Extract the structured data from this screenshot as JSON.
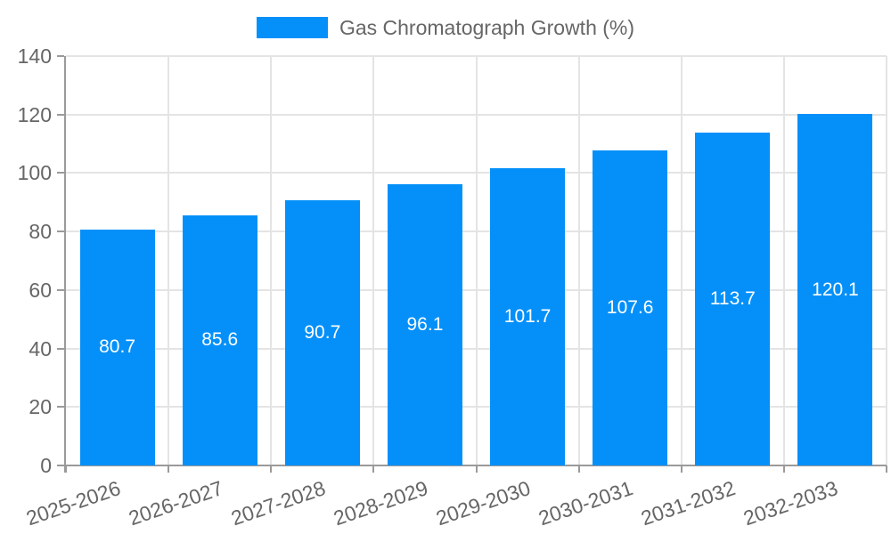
{
  "chart_data": {
    "type": "bar",
    "title": "",
    "legend_label": "Gas Chromatograph Growth (%)",
    "legend_position": "top",
    "categories": [
      "2025-2026",
      "2026-2027",
      "2027-2028",
      "2028-2029",
      "2029-2030",
      "2030-2031",
      "2031-2032",
      "2032-2033"
    ],
    "series": [
      {
        "name": "Gas Chromatograph Growth (%)",
        "values": [
          80.7,
          85.6,
          90.7,
          96.1,
          101.7,
          107.6,
          113.7,
          120.1
        ]
      }
    ],
    "data_labels": [
      "80.7",
      "85.6",
      "90.7",
      "96.1",
      "101.7",
      "107.6",
      "113.7",
      "120.1"
    ],
    "xlabel": "",
    "ylabel": "",
    "ylim": [
      0,
      140
    ],
    "yticks": [
      0,
      20,
      40,
      60,
      80,
      100,
      120,
      140
    ],
    "grid": true,
    "colors": {
      "bar": "#0590F9",
      "bar_label": "#ffffff",
      "axis": "#9a9a9a",
      "grid": "#e4e4e4",
      "tick_label": "#666666",
      "legend_text": "#666666",
      "background": "#ffffff"
    }
  }
}
